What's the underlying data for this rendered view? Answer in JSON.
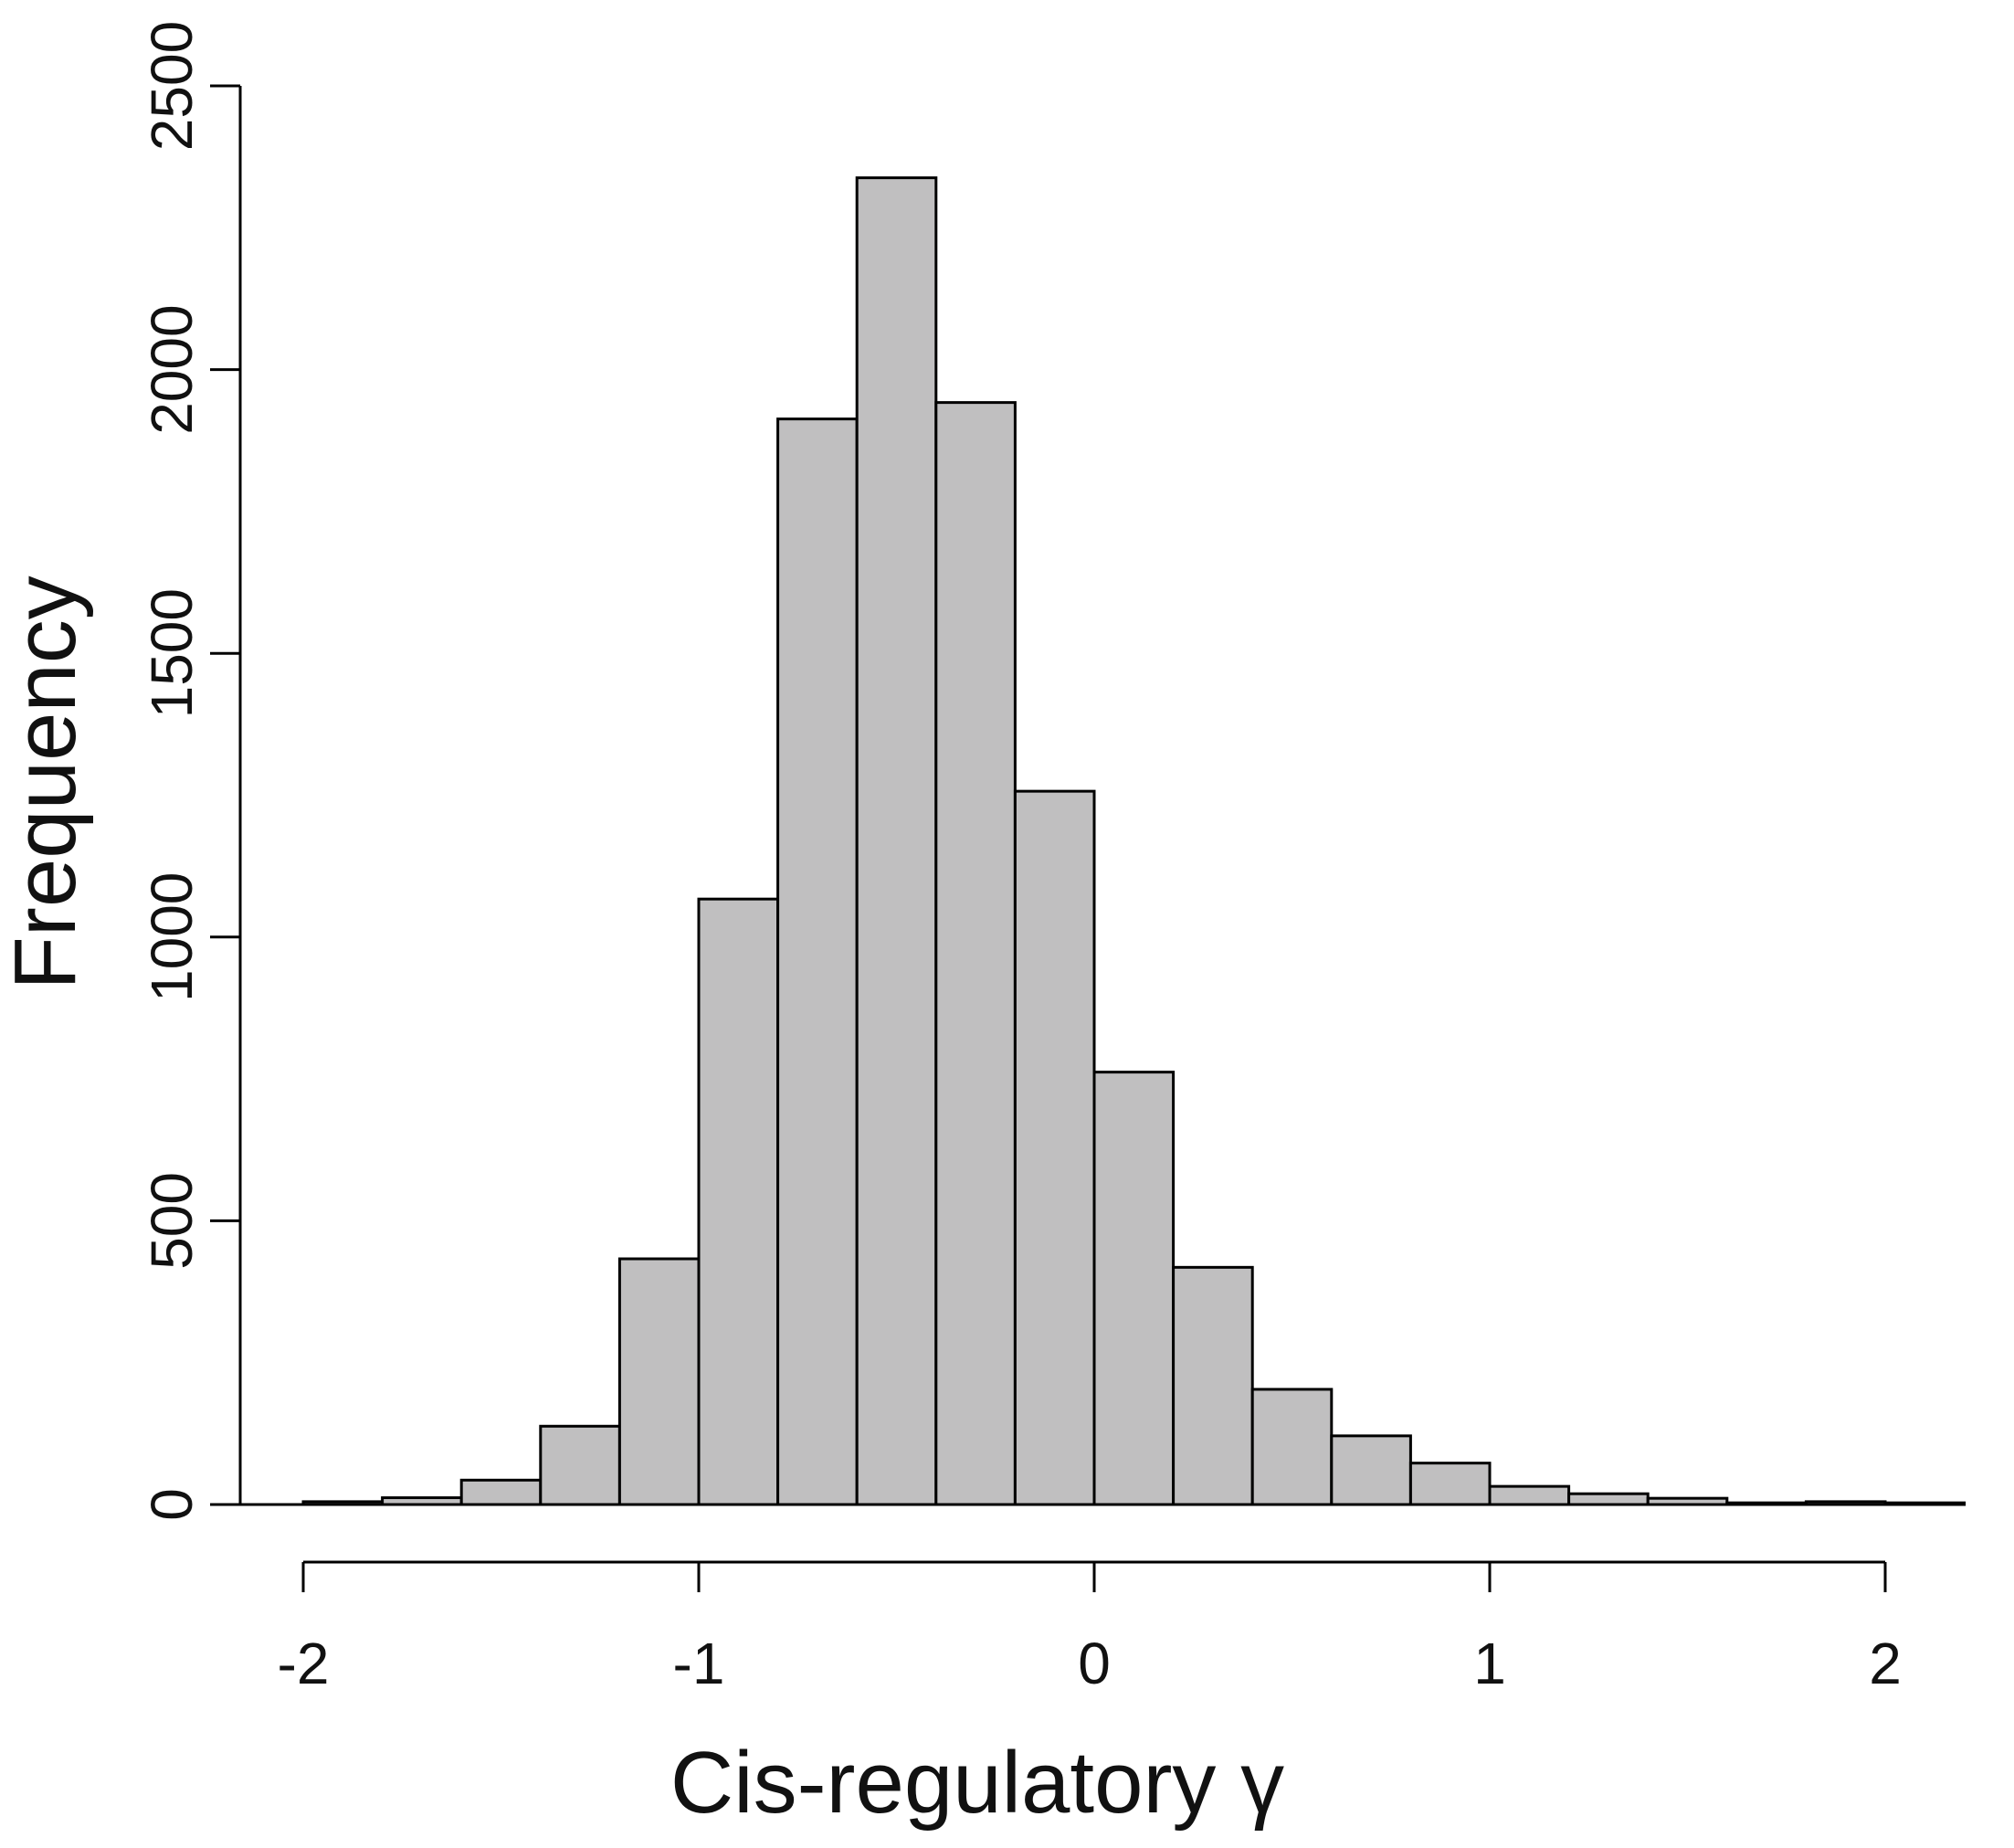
{
  "chart_data": {
    "type": "bar",
    "title": "",
    "xlabel": "Cis-regulatory γ",
    "ylabel": "Frequency",
    "xlim": [
      -2,
      2.2
    ],
    "ylim": [
      0,
      2500
    ],
    "grid": false,
    "legend": "none",
    "bar_fill": "#c0bfc0",
    "bar_stroke": "#000000",
    "bin_edges": [
      -2.0,
      -1.8,
      -1.6,
      -1.4,
      -1.2,
      -1.0,
      -0.8,
      -0.6,
      -0.4,
      -0.2,
      0.0,
      0.2,
      0.4,
      0.6,
      0.8,
      1.0,
      1.2,
      1.4,
      1.6,
      1.8,
      2.0,
      2.2
    ],
    "values": [
      5,
      12,
      43,
      138,
      433,
      1067,
      1913,
      2338,
      1942,
      1257,
      762,
      418,
      203,
      121,
      73,
      32,
      19,
      11,
      3,
      5,
      3
    ],
    "x_ticks": [
      "-2",
      "-1",
      "0",
      "1",
      "2"
    ],
    "x_tick_values": [
      -2,
      -1,
      0,
      1,
      2
    ],
    "y_ticks": [
      "0",
      "500",
      "1000",
      "1500",
      "2000",
      "2500"
    ],
    "y_tick_values": [
      0,
      500,
      1000,
      1500,
      2000,
      2500
    ]
  }
}
